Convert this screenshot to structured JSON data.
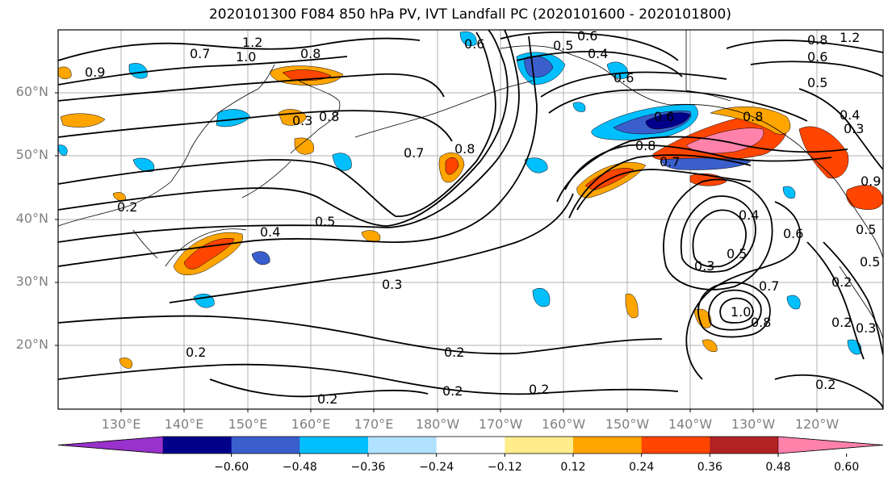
{
  "title": "2020101300 F084 850 hPa PV, IVT Landfall PC (2020101600 - 2020101800)",
  "lat_labels": [
    "60°N",
    "50°N",
    "40°N",
    "30°N",
    "20°N"
  ],
  "lon_labels": [
    "130°E",
    "140°E",
    "150°E",
    "160°E",
    "170°E",
    "180°W",
    "170°W",
    "160°W",
    "150°W",
    "140°W",
    "130°W",
    "120°W"
  ],
  "colorbar": {
    "colors": [
      "#9932CC",
      "#00008B",
      "#3A5FCD",
      "#00BFFF",
      "#B0E2FF",
      "#FFFFFF",
      "#FFEC8B",
      "#FFA500",
      "#FF4500",
      "#B22222",
      "#FF82AB"
    ],
    "tick_labels": [
      "−0.60",
      "−0.48",
      "−0.36",
      "−0.24",
      "−0.12",
      "0.12",
      "0.24",
      "0.36",
      "0.48",
      "0.60"
    ]
  },
  "contour_labels": [
    {
      "text": "1.2"
    },
    {
      "text": "1.0"
    },
    {
      "text": "0.9"
    },
    {
      "text": "0.7"
    },
    {
      "text": "0.8"
    },
    {
      "text": "0.3"
    },
    {
      "text": "0.8"
    },
    {
      "text": "0.6"
    },
    {
      "text": "0.6"
    },
    {
      "text": "0.5"
    },
    {
      "text": "0.4"
    },
    {
      "text": "0.6"
    },
    {
      "text": "0.6"
    },
    {
      "text": "0.8"
    },
    {
      "text": "0.7"
    },
    {
      "text": "0.8"
    },
    {
      "text": "0.7"
    },
    {
      "text": "1.2"
    },
    {
      "text": "0.8"
    },
    {
      "text": "0.6"
    },
    {
      "text": "0.5"
    },
    {
      "text": "0.4"
    },
    {
      "text": "0.3"
    },
    {
      "text": "0.8"
    },
    {
      "text": "0.9"
    },
    {
      "text": "0.2"
    },
    {
      "text": "0.4"
    },
    {
      "text": "0.5"
    },
    {
      "text": "0.3"
    },
    {
      "text": "0.4"
    },
    {
      "text": "0.3"
    },
    {
      "text": "0.5"
    },
    {
      "text": "0.6"
    },
    {
      "text": "1.0"
    },
    {
      "text": "0.8"
    },
    {
      "text": "0.7"
    },
    {
      "text": "0.5"
    },
    {
      "text": "0.2"
    },
    {
      "text": "0.2"
    },
    {
      "text": "0.2"
    },
    {
      "text": "0.2"
    },
    {
      "text": "0.2"
    },
    {
      "text": "0.2"
    },
    {
      "text": "0.2"
    },
    {
      "text": "0.3"
    },
    {
      "text": "0.5"
    },
    {
      "text": "0.2"
    }
  ]
}
